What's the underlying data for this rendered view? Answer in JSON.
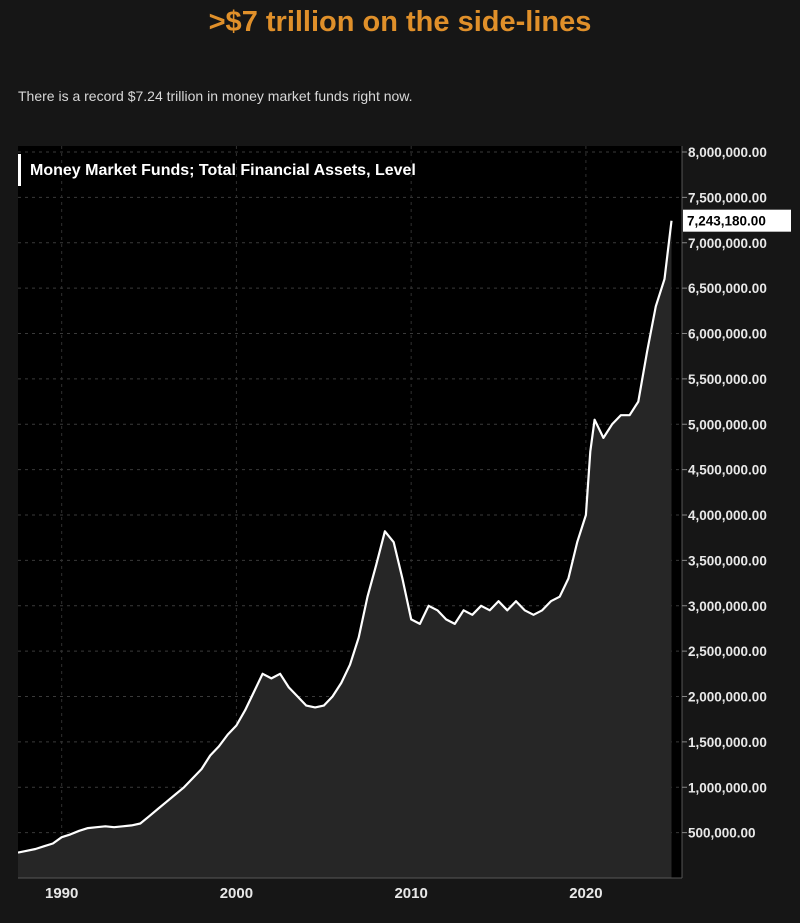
{
  "headline": ">$7 trillion on the side-lines",
  "subline": "There is a record $7.24 trillion in money market funds right now.",
  "colors": {
    "background": "#161616",
    "plot_background": "#000000",
    "headline": "#e0902a",
    "line": "#ffffff",
    "area_fill": "#262626"
  },
  "chart_data": {
    "type": "area",
    "title": "Money Market Funds; Total Financial Assets, Level",
    "xlabel": "",
    "ylabel": "",
    "xlim": [
      1987.5,
      2025.5
    ],
    "ylim": [
      0,
      8000000
    ],
    "x_ticks": [
      1990,
      2000,
      2010,
      2020
    ],
    "x_tick_labels": [
      "1990",
      "2000",
      "2010",
      "2020"
    ],
    "y_ticks": [
      500000,
      1000000,
      1500000,
      2000000,
      2500000,
      3000000,
      3500000,
      4000000,
      4500000,
      5000000,
      5500000,
      6000000,
      6500000,
      7000000,
      7500000,
      8000000
    ],
    "y_tick_labels": [
      "500,000.00",
      "1,000,000.00",
      "1,500,000.00",
      "2,000,000.00",
      "2,500,000.00",
      "3,000,000.00",
      "3,500,000.00",
      "4,000,000.00",
      "4,500,000.00",
      "5,000,000.00",
      "5,500,000.00",
      "6,000,000.00",
      "6,500,000.00",
      "7,000,000.00",
      "7,500,000.00",
      "8,000,000.00"
    ],
    "last_value_label": "7,243,180.00",
    "grid": true,
    "series": [
      {
        "x": [
          1987.5,
          1988,
          1988.5,
          1989,
          1989.5,
          1990,
          1990.5,
          1991,
          1991.5,
          1992,
          1992.5,
          1993,
          1993.5,
          1994,
          1994.5,
          1995,
          1995.5,
          1996,
          1996.5,
          1997,
          1997.5,
          1998,
          1998.5,
          1999,
          1999.5,
          2000,
          2000.5,
          2001,
          2001.5,
          2002,
          2002.5,
          2003,
          2003.5,
          2004,
          2004.5,
          2005,
          2005.5,
          2006,
          2006.5,
          2007,
          2007.5,
          2008,
          2008.5,
          2009,
          2009.5,
          2010,
          2010.5,
          2011,
          2011.5,
          2012,
          2012.5,
          2013,
          2013.5,
          2014,
          2014.5,
          2015,
          2015.5,
          2016,
          2016.5,
          2017,
          2017.5,
          2018,
          2018.5,
          2019,
          2019.5,
          2020,
          2020.25,
          2020.5,
          2021,
          2021.5,
          2022,
          2022.5,
          2023,
          2023.5,
          2024,
          2024.5,
          2024.9
        ],
        "values": [
          280000,
          300000,
          320000,
          350000,
          380000,
          450000,
          480000,
          520000,
          550000,
          560000,
          570000,
          560000,
          570000,
          580000,
          600000,
          680000,
          760000,
          840000,
          920000,
          1000000,
          1100000,
          1200000,
          1350000,
          1450000,
          1580000,
          1680000,
          1850000,
          2050000,
          2250000,
          2200000,
          2250000,
          2100000,
          2000000,
          1900000,
          1880000,
          1900000,
          2000000,
          2150000,
          2350000,
          2650000,
          3100000,
          3450000,
          3820000,
          3700000,
          3300000,
          2850000,
          2800000,
          3000000,
          2950000,
          2850000,
          2800000,
          2950000,
          2900000,
          3000000,
          2950000,
          3050000,
          2950000,
          3050000,
          2950000,
          2900000,
          2950000,
          3050000,
          3100000,
          3300000,
          3700000,
          4000000,
          4700000,
          5050000,
          4850000,
          5000000,
          5100000,
          5100000,
          5250000,
          5800000,
          6300000,
          6600000,
          7243180
        ]
      }
    ]
  }
}
